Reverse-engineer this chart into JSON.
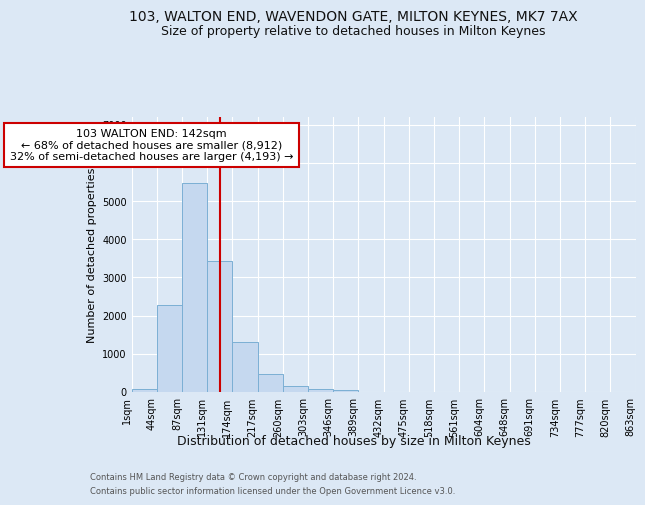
{
  "title": "103, WALTON END, WAVENDON GATE, MILTON KEYNES, MK7 7AX",
  "subtitle": "Size of property relative to detached houses in Milton Keynes",
  "xlabel": "Distribution of detached houses by size in Milton Keynes",
  "ylabel": "Number of detached properties",
  "footer_line1": "Contains HM Land Registry data © Crown copyright and database right 2024.",
  "footer_line2": "Contains public sector information licensed under the Open Government Licence v3.0.",
  "bar_values": [
    80,
    2280,
    5470,
    3440,
    1320,
    460,
    155,
    85,
    55,
    0,
    0,
    0,
    0,
    0,
    0,
    0,
    0,
    0,
    0,
    0
  ],
  "bar_labels": [
    "1sqm",
    "44sqm",
    "87sqm",
    "131sqm",
    "174sqm",
    "217sqm",
    "260sqm",
    "303sqm",
    "346sqm",
    "389sqm",
    "432sqm",
    "475sqm",
    "518sqm",
    "561sqm",
    "604sqm",
    "648sqm",
    "691sqm",
    "734sqm",
    "777sqm",
    "820sqm",
    "863sqm"
  ],
  "bar_color": "#c5d8ef",
  "bar_edge_color": "#7bafd4",
  "vline_x": 3.0,
  "vline_color": "#cc0000",
  "annotation_line1": "103 WALTON END: 142sqm",
  "annotation_line2": "← 68% of detached houses are smaller (8,912)",
  "annotation_line3": "32% of semi-detached houses are larger (4,193) →",
  "annotation_box_facecolor": "#ffffff",
  "annotation_box_edgecolor": "#cc0000",
  "ylim": [
    0,
    7200
  ],
  "yticks": [
    0,
    1000,
    2000,
    3000,
    4000,
    5000,
    6000,
    7000
  ],
  "bg_color": "#dce8f5",
  "grid_color": "#ffffff",
  "title_fontsize": 10,
  "subtitle_fontsize": 9,
  "xlabel_fontsize": 9,
  "ylabel_fontsize": 8,
  "annot_fontsize": 8,
  "tick_fontsize": 7
}
